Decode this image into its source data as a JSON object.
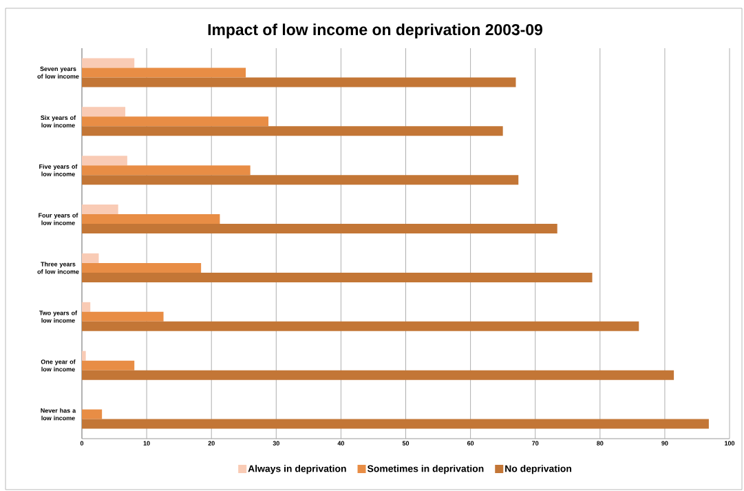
{
  "chart_data": {
    "type": "bar",
    "orientation": "horizontal",
    "title": "Impact of low income on deprivation 2003-09",
    "categories": [
      "Seven years of low income",
      "Six years of low income",
      "Five years of low income",
      "Four years of low income",
      "Three years of low income",
      "Two years of low income",
      "One year of low income",
      "Never has a low income"
    ],
    "series": [
      {
        "name": "Always in deprivation",
        "color": "#f9cbb5",
        "values": [
          8.1,
          6.7,
          7.0,
          5.6,
          2.6,
          1.3,
          0.6,
          null
        ]
      },
      {
        "name": "Sometimes in deprivation",
        "color": "#e88d45",
        "values": [
          25.3,
          28.8,
          26.0,
          21.3,
          18.4,
          12.6,
          8.1,
          3.1
        ]
      },
      {
        "name": "No deprivation",
        "color": "#c37636",
        "values": [
          67.0,
          65.0,
          67.4,
          73.4,
          78.8,
          86.0,
          91.4,
          96.8
        ]
      }
    ],
    "xlim": [
      0,
      100
    ],
    "xticks": [
      0,
      10,
      20,
      30,
      40,
      50,
      60,
      70,
      80,
      90,
      100
    ],
    "grid": "x",
    "legend": "bottom"
  }
}
